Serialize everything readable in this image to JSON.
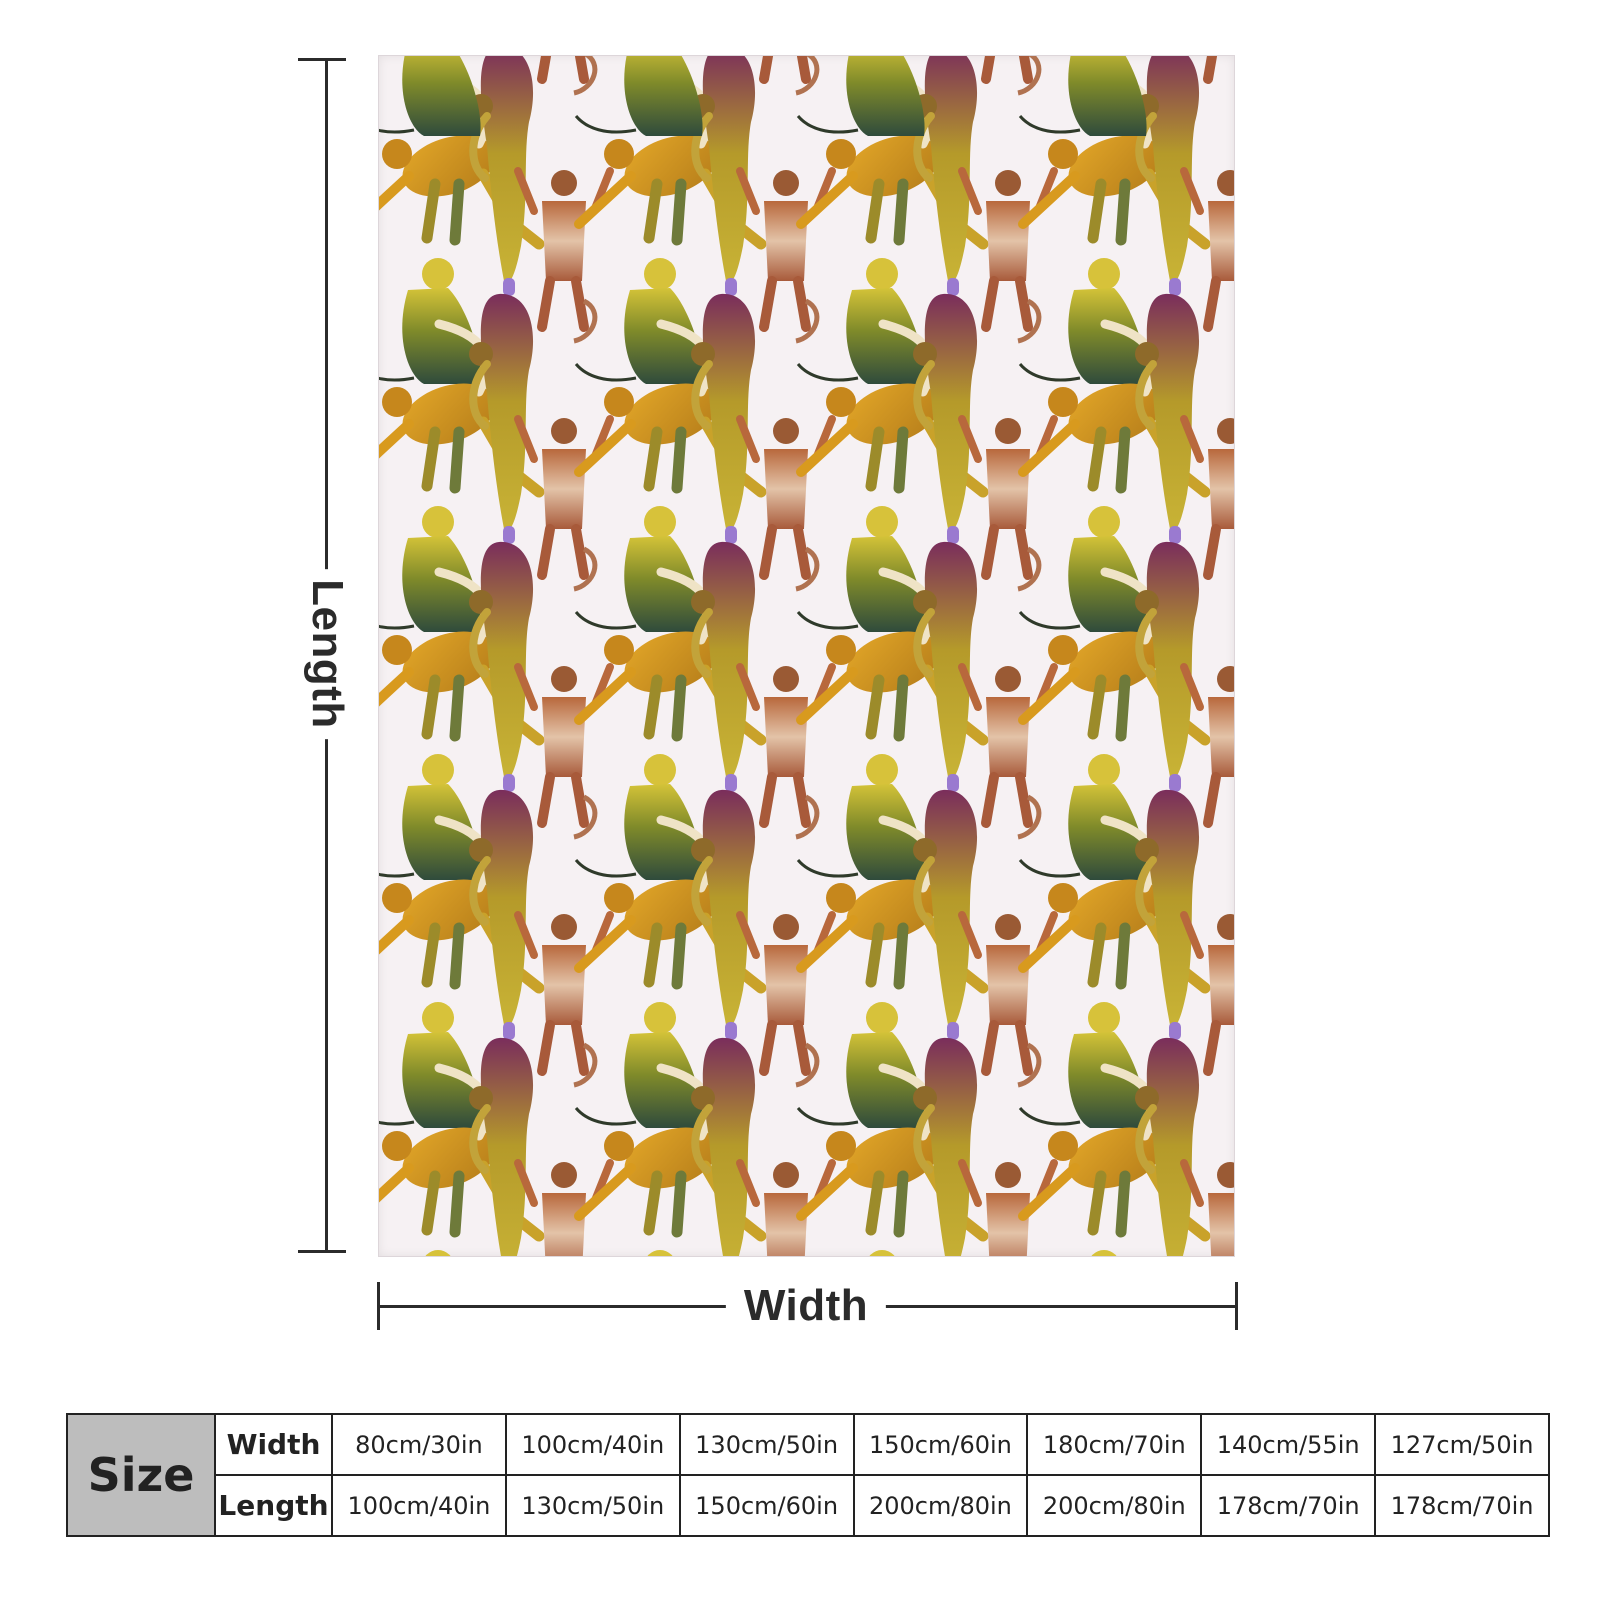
{
  "diagram": {
    "length_label": "Length",
    "width_label": "Width"
  },
  "size_table": {
    "header": "Size",
    "rows": [
      {
        "label": "Width",
        "values": [
          "80cm/30in",
          "100cm/40in",
          "130cm/50in",
          "150cm/60in",
          "180cm/70in",
          "140cm/55in",
          "127cm/50in"
        ]
      },
      {
        "label": "Length",
        "values": [
          "100cm/40in",
          "130cm/50in",
          "150cm/60in",
          "200cm/80in",
          "200cm/80in",
          "178cm/70in",
          "178cm/70in"
        ]
      }
    ]
  },
  "colors": {
    "blanket_background": "#f6f1f3",
    "table_header_background": "#bdbdbd",
    "monkey_orange": "#d89a1e",
    "monkey_olive": "#7f8a2a",
    "monkey_purple": "#7a2d5c",
    "monkey_tan": "#c9906a",
    "monkey_dark_green": "#2f4b3c",
    "monkey_yellow": "#d7c23a"
  }
}
